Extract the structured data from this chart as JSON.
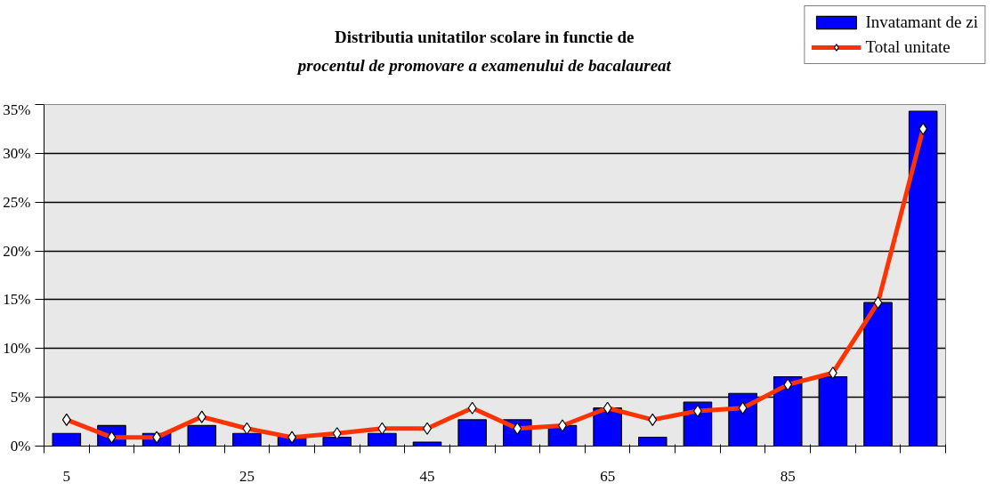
{
  "chart_data": {
    "type": "bar",
    "title": "Distributia unitatilor scolare in functie de",
    "subtitle": "procentul de promovare a examenului de bacalaureat",
    "categories": [
      "5",
      null,
      null,
      null,
      "25",
      null,
      null,
      null,
      "45",
      null,
      null,
      null,
      "65",
      null,
      null,
      null,
      "85",
      null,
      null,
      null
    ],
    "series": [
      {
        "name": "Invatamant de zi",
        "color": "#0000ff",
        "values": [
          1.3,
          2.1,
          1.3,
          2.1,
          1.3,
          1.0,
          0.9,
          1.3,
          0.4,
          2.7,
          2.7,
          2.1,
          3.9,
          0.9,
          4.5,
          5.4,
          7.1,
          7.1,
          14.7,
          34.3
        ]
      },
      {
        "name": "Total unitate",
        "type": "line",
        "color": "#ff3300",
        "marker": "diamond",
        "values": [
          2.7,
          0.9,
          0.9,
          3.0,
          1.8,
          0.9,
          1.3,
          1.8,
          1.8,
          3.9,
          1.8,
          2.1,
          3.9,
          2.7,
          3.6,
          3.9,
          6.3,
          7.5,
          14.7,
          32.5
        ]
      }
    ],
    "ylim": [
      0,
      35
    ],
    "yticks": [
      {
        "value": 0,
        "label": "0%"
      },
      {
        "value": 5,
        "label": "5%"
      },
      {
        "value": 10,
        "label": "10%"
      },
      {
        "value": 15,
        "label": "15%"
      },
      {
        "value": 20,
        "label": "20%"
      },
      {
        "value": 25,
        "label": "25%"
      },
      {
        "value": 30,
        "label": "30%"
      },
      {
        "value": 35,
        "label": "35%"
      }
    ],
    "grid": "y",
    "legend": "top right"
  }
}
